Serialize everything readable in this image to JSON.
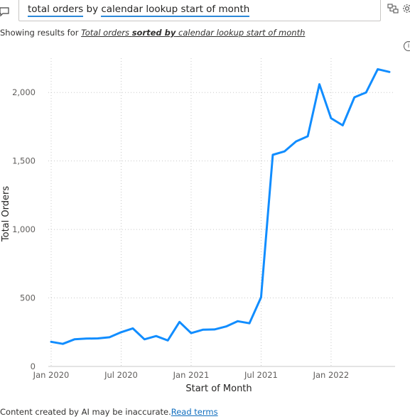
{
  "qa": {
    "query_part1": "total orders",
    "query_part2": " by ",
    "query_part3": "calendar lookup start of month"
  },
  "showing": {
    "prefix": "Showing results for ",
    "restated_part1": "Total orders ",
    "restated_part2": "sorted by",
    "restated_part3": " calendar lookup start of month"
  },
  "info_label": "i",
  "footer": {
    "disclaimer": "Content created by AI may be inaccurate.",
    "link_label": "Read terms"
  },
  "chart_data": {
    "type": "line",
    "title": "",
    "xlabel": "Start of Month",
    "ylabel": "Total Orders",
    "ylim": [
      0,
      2250
    ],
    "yticks": [
      0,
      500,
      1000,
      1500,
      2000
    ],
    "ytick_labels": [
      "0",
      "500",
      "1,000",
      "1,500",
      "2,000"
    ],
    "xticks": [
      "Jan 2020",
      "Jul 2020",
      "Jan 2021",
      "Jul 2021",
      "Jan 2022"
    ],
    "grid": true,
    "line_color": "#118dff",
    "x": [
      "2020-01",
      "2020-02",
      "2020-03",
      "2020-04",
      "2020-05",
      "2020-06",
      "2020-07",
      "2020-08",
      "2020-09",
      "2020-10",
      "2020-11",
      "2020-12",
      "2021-01",
      "2021-02",
      "2021-03",
      "2021-04",
      "2021-05",
      "2021-06",
      "2021-07",
      "2021-08",
      "2021-09",
      "2021-10",
      "2021-11",
      "2021-12",
      "2022-01",
      "2022-02",
      "2022-03",
      "2022-04",
      "2022-05",
      "2022-06"
    ],
    "series": [
      {
        "values": [
          180,
          165,
          198,
          203,
          205,
          213,
          250,
          278,
          198,
          222,
          190,
          325,
          243,
          268,
          270,
          292,
          330,
          315,
          505,
          1545,
          1570,
          1643,
          1680,
          2060,
          1812,
          1760,
          1965,
          2000,
          2170,
          2150
        ]
      }
    ]
  }
}
